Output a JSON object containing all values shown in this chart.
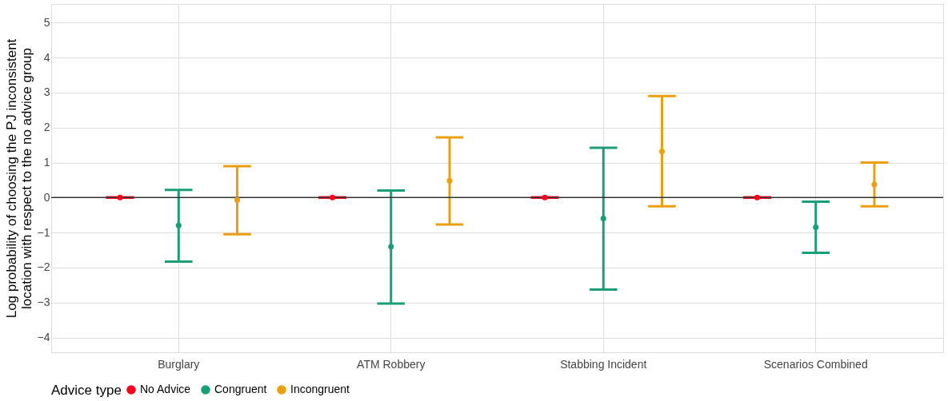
{
  "chart_data": {
    "type": "scatter",
    "ylabel": "Log probability of choosing the PJ inconsistent\nlocation with respect to the no advice group",
    "legend_title": "Advice type",
    "categories": [
      "Burglary",
      "ATM Robbery",
      "Stabbing Incident",
      "Scenarios Combined"
    ],
    "series": [
      {
        "name": "No Advice",
        "color": "#f8001a",
        "values": [
          0,
          0,
          0,
          0
        ],
        "errors": [
          0,
          0,
          0,
          0
        ]
      },
      {
        "name": "Congruent",
        "color": "#1b9e77",
        "values": [
          -0.8,
          -1.4,
          -0.6,
          -0.85
        ],
        "errors": [
          [
            -1.83,
            0.22
          ],
          [
            -3.03,
            0.2
          ],
          [
            -2.63,
            1.42
          ],
          [
            -1.58,
            -0.12
          ]
        ]
      },
      {
        "name": "Incongruent",
        "color": "#eaa00e",
        "values": [
          -0.07,
          0.48,
          1.32,
          0.37
        ],
        "errors": [
          [
            -1.05,
            0.9
          ],
          [
            -0.77,
            1.72
          ],
          [
            -0.25,
            2.9
          ],
          [
            -0.25,
            1.0
          ]
        ]
      }
    ],
    "ylim": [
      -4.42,
      5.53
    ],
    "yticks": [
      -4,
      -3,
      -2,
      -1,
      0,
      1,
      2,
      3,
      4,
      5
    ],
    "ref_lines": [
      {
        "axis": "y",
        "value": 0,
        "color": "#333333"
      }
    ],
    "grid": true,
    "legend": "bottom",
    "marker": "circle"
  }
}
